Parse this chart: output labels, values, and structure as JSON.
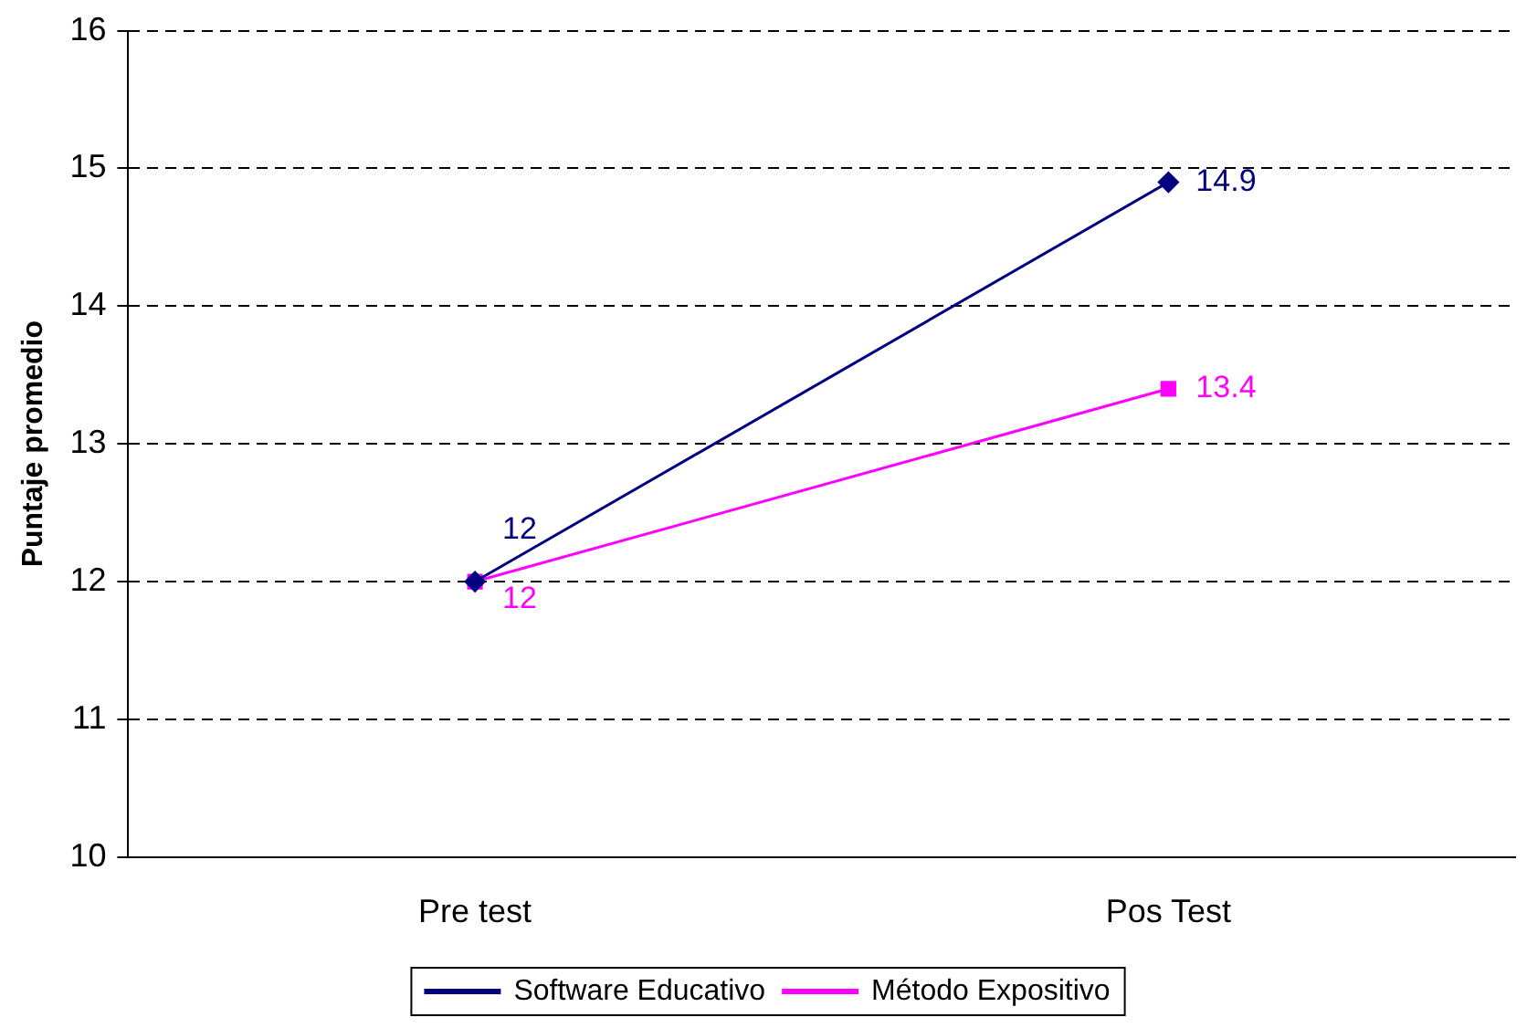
{
  "chart_data": {
    "type": "line",
    "ylabel": "Puntaje promedio",
    "categories": [
      "Pre test",
      "Pos Test"
    ],
    "series": [
      {
        "name": "Software Educativo",
        "color": "#000080",
        "marker": "diamond",
        "values": [
          12,
          14.9
        ]
      },
      {
        "name": "Método Expositivo",
        "color": "#ff00ff",
        "marker": "square",
        "values": [
          12,
          13.4
        ]
      }
    ],
    "ylim": [
      10,
      16
    ],
    "yticks": [
      10,
      11,
      12,
      13,
      14,
      15,
      16
    ],
    "grid": "y",
    "line_style": "solid",
    "legend": "bottom",
    "data_labels": true
  }
}
